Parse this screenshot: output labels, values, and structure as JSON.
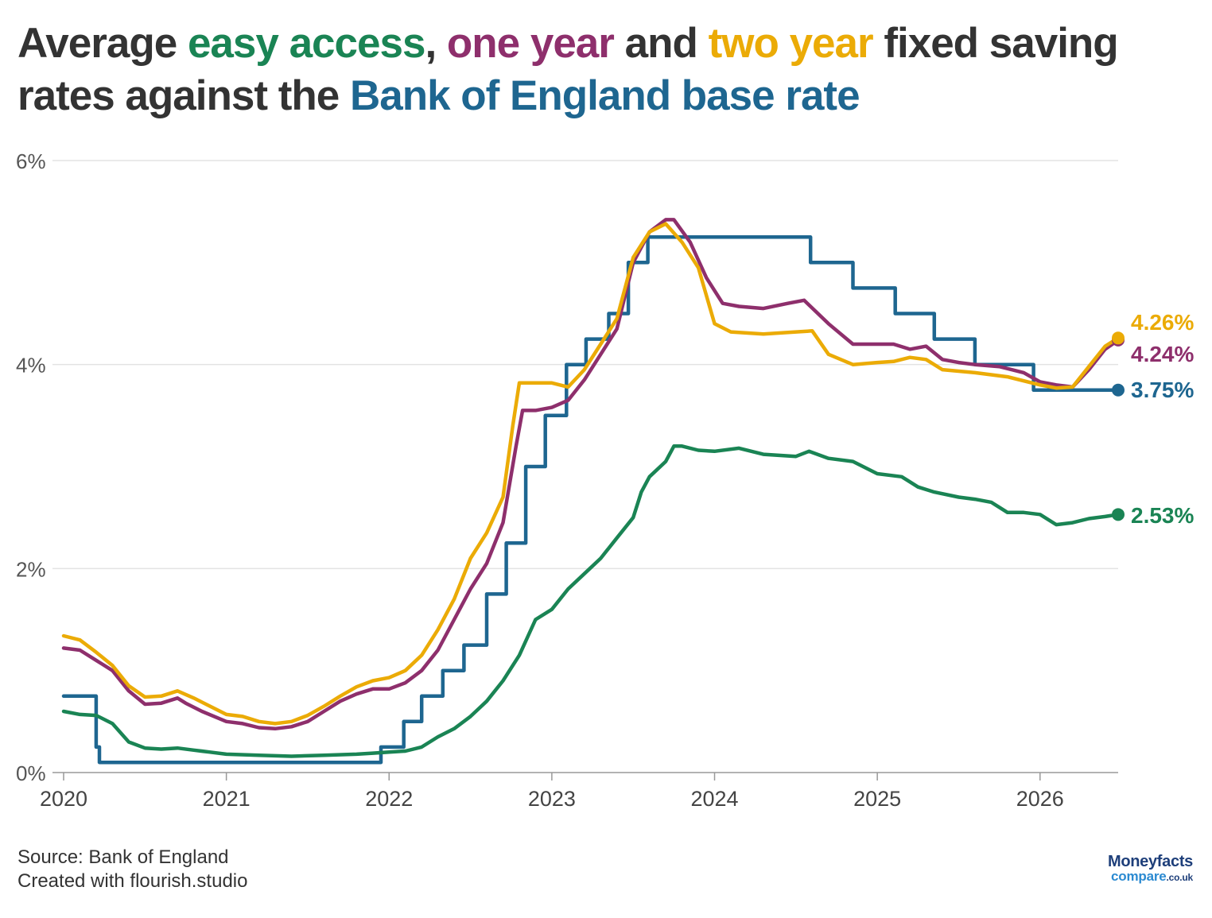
{
  "header": {
    "title_parts": {
      "p1": "Average ",
      "easy": "easy access",
      "p2": ", ",
      "one": "one year",
      "p3": " and ",
      "two": "two year",
      "p4": " fixed saving rates against the ",
      "boe": "Bank of England base rate"
    }
  },
  "footer": {
    "source": "Source: Bank of England",
    "credit": "Created with flourish.studio"
  },
  "logo": {
    "top": "Moneyfacts",
    "bottom": "compare",
    "suffix": ".co.uk"
  },
  "chart_data": {
    "type": "line",
    "title": "Average easy access, one year and two year fixed saving rates against the Bank of England base rate",
    "xlabel": "",
    "ylabel": "",
    "xlim": [
      2020.0,
      2026.48
    ],
    "ylim": [
      0,
      6
    ],
    "y_ticks": [
      {
        "value": 0,
        "label": "0%"
      },
      {
        "value": 2,
        "label": "2%"
      },
      {
        "value": 4,
        "label": "4%"
      },
      {
        "value": 6,
        "label": "6%"
      }
    ],
    "x_ticks": [
      {
        "value": 2020,
        "label": "2020"
      },
      {
        "value": 2021,
        "label": "2021"
      },
      {
        "value": 2022,
        "label": "2022"
      },
      {
        "value": 2023,
        "label": "2023"
      },
      {
        "value": 2024,
        "label": "2024"
      },
      {
        "value": 2025,
        "label": "2025"
      },
      {
        "value": 2026,
        "label": "2026"
      }
    ],
    "grid": true,
    "legend": "none",
    "series": [
      {
        "key": "base",
        "color": "#1e6690",
        "step": true,
        "end_label": "3.75%",
        "points": [
          [
            2020.0,
            0.75
          ],
          [
            2020.2,
            0.75
          ],
          [
            2020.2,
            0.25
          ],
          [
            2020.22,
            0.25
          ],
          [
            2020.22,
            0.1
          ],
          [
            2021.95,
            0.1
          ],
          [
            2021.95,
            0.25
          ],
          [
            2022.09,
            0.25
          ],
          [
            2022.09,
            0.5
          ],
          [
            2022.2,
            0.5
          ],
          [
            2022.2,
            0.75
          ],
          [
            2022.33,
            0.75
          ],
          [
            2022.33,
            1.0
          ],
          [
            2022.46,
            1.0
          ],
          [
            2022.46,
            1.25
          ],
          [
            2022.6,
            1.25
          ],
          [
            2022.6,
            1.75
          ],
          [
            2022.72,
            1.75
          ],
          [
            2022.72,
            2.25
          ],
          [
            2022.84,
            2.25
          ],
          [
            2022.84,
            3.0
          ],
          [
            2022.96,
            3.0
          ],
          [
            2022.96,
            3.5
          ],
          [
            2023.09,
            3.5
          ],
          [
            2023.09,
            4.0
          ],
          [
            2023.21,
            4.0
          ],
          [
            2023.21,
            4.25
          ],
          [
            2023.35,
            4.25
          ],
          [
            2023.35,
            4.5
          ],
          [
            2023.47,
            4.5
          ],
          [
            2023.47,
            5.0
          ],
          [
            2023.59,
            5.0
          ],
          [
            2023.59,
            5.25
          ],
          [
            2024.59,
            5.25
          ],
          [
            2024.59,
            5.0
          ],
          [
            2024.85,
            5.0
          ],
          [
            2024.85,
            4.75
          ],
          [
            2025.11,
            4.75
          ],
          [
            2025.11,
            4.5
          ],
          [
            2025.35,
            4.5
          ],
          [
            2025.35,
            4.25
          ],
          [
            2025.6,
            4.25
          ],
          [
            2025.6,
            4.0
          ],
          [
            2025.96,
            4.0
          ],
          [
            2025.96,
            3.75
          ],
          [
            2026.48,
            3.75
          ]
        ]
      },
      {
        "key": "easy",
        "color": "#1a8454",
        "end_label": "2.53%",
        "points": [
          [
            2020.0,
            0.6
          ],
          [
            2020.1,
            0.57
          ],
          [
            2020.2,
            0.56
          ],
          [
            2020.3,
            0.48
          ],
          [
            2020.4,
            0.3
          ],
          [
            2020.5,
            0.24
          ],
          [
            2020.6,
            0.23
          ],
          [
            2020.7,
            0.24
          ],
          [
            2020.8,
            0.22
          ],
          [
            2020.9,
            0.2
          ],
          [
            2021.0,
            0.18
          ],
          [
            2021.2,
            0.17
          ],
          [
            2021.4,
            0.16
          ],
          [
            2021.6,
            0.17
          ],
          [
            2021.8,
            0.18
          ],
          [
            2021.9,
            0.19
          ],
          [
            2022.0,
            0.2
          ],
          [
            2022.1,
            0.21
          ],
          [
            2022.2,
            0.25
          ],
          [
            2022.3,
            0.35
          ],
          [
            2022.4,
            0.43
          ],
          [
            2022.5,
            0.55
          ],
          [
            2022.6,
            0.7
          ],
          [
            2022.7,
            0.9
          ],
          [
            2022.8,
            1.15
          ],
          [
            2022.9,
            1.5
          ],
          [
            2023.0,
            1.6
          ],
          [
            2023.1,
            1.8
          ],
          [
            2023.2,
            1.95
          ],
          [
            2023.3,
            2.1
          ],
          [
            2023.4,
            2.3
          ],
          [
            2023.5,
            2.5
          ],
          [
            2023.55,
            2.75
          ],
          [
            2023.6,
            2.9
          ],
          [
            2023.7,
            3.05
          ],
          [
            2023.75,
            3.2
          ],
          [
            2023.8,
            3.2
          ],
          [
            2023.9,
            3.16
          ],
          [
            2024.0,
            3.15
          ],
          [
            2024.15,
            3.18
          ],
          [
            2024.3,
            3.12
          ],
          [
            2024.5,
            3.1
          ],
          [
            2024.58,
            3.15
          ],
          [
            2024.7,
            3.08
          ],
          [
            2024.85,
            3.05
          ],
          [
            2025.0,
            2.93
          ],
          [
            2025.15,
            2.9
          ],
          [
            2025.25,
            2.8
          ],
          [
            2025.35,
            2.75
          ],
          [
            2025.5,
            2.7
          ],
          [
            2025.6,
            2.68
          ],
          [
            2025.7,
            2.65
          ],
          [
            2025.8,
            2.55
          ],
          [
            2025.9,
            2.55
          ],
          [
            2026.0,
            2.53
          ],
          [
            2026.1,
            2.43
          ],
          [
            2026.2,
            2.45
          ],
          [
            2026.3,
            2.49
          ],
          [
            2026.4,
            2.51
          ],
          [
            2026.48,
            2.53
          ]
        ]
      },
      {
        "key": "one",
        "color": "#8e2f6c",
        "end_label": "4.24%",
        "points": [
          [
            2020.0,
            1.22
          ],
          [
            2020.1,
            1.2
          ],
          [
            2020.2,
            1.1
          ],
          [
            2020.3,
            1.0
          ],
          [
            2020.4,
            0.8
          ],
          [
            2020.5,
            0.67
          ],
          [
            2020.6,
            0.68
          ],
          [
            2020.7,
            0.73
          ],
          [
            2020.75,
            0.68
          ],
          [
            2020.85,
            0.6
          ],
          [
            2021.0,
            0.5
          ],
          [
            2021.1,
            0.48
          ],
          [
            2021.2,
            0.44
          ],
          [
            2021.3,
            0.43
          ],
          [
            2021.4,
            0.45
          ],
          [
            2021.5,
            0.5
          ],
          [
            2021.6,
            0.6
          ],
          [
            2021.7,
            0.7
          ],
          [
            2021.8,
            0.77
          ],
          [
            2021.9,
            0.82
          ],
          [
            2022.0,
            0.82
          ],
          [
            2022.1,
            0.88
          ],
          [
            2022.2,
            1.0
          ],
          [
            2022.3,
            1.2
          ],
          [
            2022.4,
            1.5
          ],
          [
            2022.5,
            1.8
          ],
          [
            2022.6,
            2.05
          ],
          [
            2022.7,
            2.45
          ],
          [
            2022.78,
            3.2
          ],
          [
            2022.82,
            3.55
          ],
          [
            2022.9,
            3.55
          ],
          [
            2023.0,
            3.58
          ],
          [
            2023.1,
            3.65
          ],
          [
            2023.2,
            3.85
          ],
          [
            2023.3,
            4.1
          ],
          [
            2023.4,
            4.35
          ],
          [
            2023.5,
            5.0
          ],
          [
            2023.6,
            5.3
          ],
          [
            2023.7,
            5.42
          ],
          [
            2023.75,
            5.42
          ],
          [
            2023.85,
            5.2
          ],
          [
            2023.95,
            4.85
          ],
          [
            2024.05,
            4.6
          ],
          [
            2024.15,
            4.57
          ],
          [
            2024.3,
            4.55
          ],
          [
            2024.45,
            4.6
          ],
          [
            2024.55,
            4.63
          ],
          [
            2024.7,
            4.4
          ],
          [
            2024.85,
            4.2
          ],
          [
            2025.0,
            4.2
          ],
          [
            2025.1,
            4.2
          ],
          [
            2025.2,
            4.15
          ],
          [
            2025.3,
            4.18
          ],
          [
            2025.4,
            4.05
          ],
          [
            2025.5,
            4.02
          ],
          [
            2025.6,
            4.0
          ],
          [
            2025.75,
            3.98
          ],
          [
            2025.9,
            3.92
          ],
          [
            2026.0,
            3.83
          ],
          [
            2026.1,
            3.8
          ],
          [
            2026.2,
            3.78
          ],
          [
            2026.3,
            3.95
          ],
          [
            2026.4,
            4.15
          ],
          [
            2026.48,
            4.24
          ]
        ]
      },
      {
        "key": "two",
        "color": "#ebab06",
        "end_label": "4.26%",
        "points": [
          [
            2020.0,
            1.34
          ],
          [
            2020.1,
            1.3
          ],
          [
            2020.2,
            1.18
          ],
          [
            2020.3,
            1.05
          ],
          [
            2020.4,
            0.85
          ],
          [
            2020.5,
            0.74
          ],
          [
            2020.6,
            0.75
          ],
          [
            2020.7,
            0.8
          ],
          [
            2020.8,
            0.73
          ],
          [
            2020.9,
            0.65
          ],
          [
            2021.0,
            0.57
          ],
          [
            2021.1,
            0.55
          ],
          [
            2021.2,
            0.5
          ],
          [
            2021.3,
            0.48
          ],
          [
            2021.4,
            0.5
          ],
          [
            2021.5,
            0.56
          ],
          [
            2021.6,
            0.65
          ],
          [
            2021.7,
            0.75
          ],
          [
            2021.8,
            0.84
          ],
          [
            2021.9,
            0.9
          ],
          [
            2022.0,
            0.93
          ],
          [
            2022.1,
            1.0
          ],
          [
            2022.2,
            1.15
          ],
          [
            2022.3,
            1.4
          ],
          [
            2022.4,
            1.7
          ],
          [
            2022.5,
            2.1
          ],
          [
            2022.6,
            2.35
          ],
          [
            2022.7,
            2.7
          ],
          [
            2022.76,
            3.4
          ],
          [
            2022.8,
            3.82
          ],
          [
            2022.9,
            3.82
          ],
          [
            2023.0,
            3.82
          ],
          [
            2023.1,
            3.78
          ],
          [
            2023.2,
            3.95
          ],
          [
            2023.3,
            4.2
          ],
          [
            2023.4,
            4.45
          ],
          [
            2023.5,
            5.05
          ],
          [
            2023.6,
            5.3
          ],
          [
            2023.7,
            5.38
          ],
          [
            2023.8,
            5.2
          ],
          [
            2023.9,
            4.95
          ],
          [
            2024.0,
            4.4
          ],
          [
            2024.1,
            4.32
          ],
          [
            2024.3,
            4.3
          ],
          [
            2024.5,
            4.32
          ],
          [
            2024.6,
            4.33
          ],
          [
            2024.7,
            4.1
          ],
          [
            2024.85,
            4.0
          ],
          [
            2025.0,
            4.02
          ],
          [
            2025.1,
            4.03
          ],
          [
            2025.2,
            4.07
          ],
          [
            2025.3,
            4.05
          ],
          [
            2025.4,
            3.95
          ],
          [
            2025.6,
            3.92
          ],
          [
            2025.8,
            3.88
          ],
          [
            2026.0,
            3.8
          ],
          [
            2026.1,
            3.77
          ],
          [
            2026.2,
            3.78
          ],
          [
            2026.3,
            3.98
          ],
          [
            2026.4,
            4.18
          ],
          [
            2026.48,
            4.26
          ]
        ]
      }
    ]
  }
}
